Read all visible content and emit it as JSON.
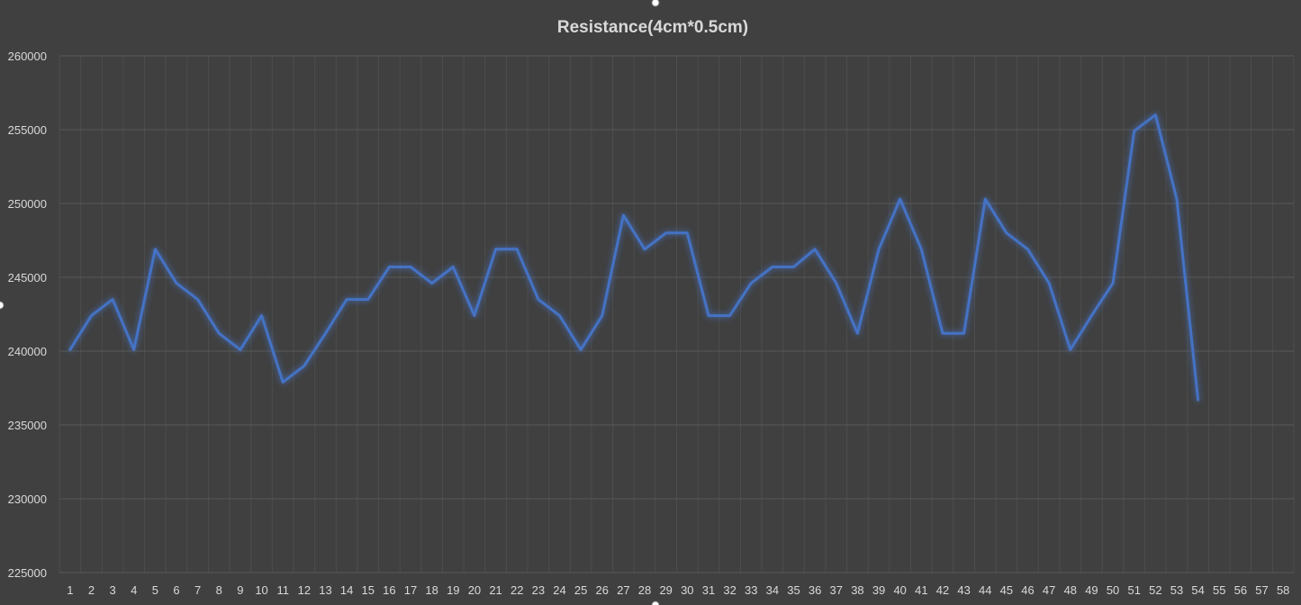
{
  "chart_data": {
    "type": "line",
    "title": "Resistance(4cm*0.5cm)",
    "xlabel": "",
    "ylabel": "",
    "categories": [
      "1",
      "2",
      "3",
      "4",
      "5",
      "6",
      "7",
      "8",
      "9",
      "10",
      "11",
      "12",
      "13",
      "14",
      "15",
      "16",
      "17",
      "18",
      "19",
      "20",
      "21",
      "22",
      "23",
      "24",
      "25",
      "26",
      "27",
      "28",
      "29",
      "30",
      "31",
      "32",
      "33",
      "34",
      "35",
      "36",
      "37",
      "38",
      "39",
      "40",
      "41",
      "42",
      "43",
      "44",
      "45",
      "46",
      "47",
      "48",
      "49",
      "50",
      "51",
      "52",
      "53",
      "54",
      "55",
      "56",
      "57",
      "58"
    ],
    "ylim": [
      225000,
      260000
    ],
    "yticks": [
      "225000",
      "230000",
      "235000",
      "240000",
      "245000",
      "250000",
      "255000",
      "260000"
    ],
    "grid": true,
    "legend": "none",
    "series": [
      {
        "color": "#4472c4",
        "values": [
          240100,
          242400,
          243500,
          240100,
          246900,
          244600,
          243500,
          241200,
          240100,
          242400,
          237900,
          239000,
          241200,
          243500,
          243500,
          245700,
          245700,
          244600,
          245700,
          242400,
          246900,
          246900,
          243500,
          242400,
          240100,
          242400,
          249200,
          246900,
          248000,
          248000,
          242400,
          242400,
          244600,
          245700,
          245700,
          246900,
          244600,
          241200,
          246900,
          250300,
          246900,
          241200,
          241200,
          250300,
          248000,
          246900,
          244600,
          240100,
          242400,
          244600,
          254900,
          256000,
          250300,
          236700,
          null,
          null,
          null,
          null
        ]
      }
    ]
  }
}
